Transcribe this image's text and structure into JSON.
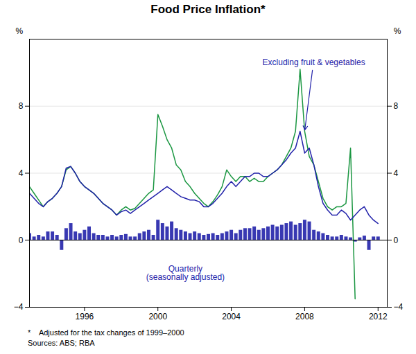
{
  "chart_data": {
    "type": "bar",
    "title": "Food Price Inflation*",
    "ylabel": "%",
    "y2label": "%",
    "x": [
      1993.0,
      1993.25,
      1993.5,
      1993.75,
      1994.0,
      1994.25,
      1994.5,
      1994.75,
      1995.0,
      1995.25,
      1995.5,
      1995.75,
      1996.0,
      1996.25,
      1996.5,
      1996.75,
      1997.0,
      1997.25,
      1997.5,
      1997.75,
      1998.0,
      1998.25,
      1998.5,
      1998.75,
      1999.0,
      1999.25,
      1999.5,
      1999.75,
      2000.0,
      2000.25,
      2000.5,
      2000.75,
      2001.0,
      2001.25,
      2001.5,
      2001.75,
      2002.0,
      2002.25,
      2002.5,
      2002.75,
      2003.0,
      2003.25,
      2003.5,
      2003.75,
      2004.0,
      2004.25,
      2004.5,
      2004.75,
      2005.0,
      2005.25,
      2005.5,
      2005.75,
      2006.0,
      2006.25,
      2006.5,
      2006.75,
      2007.0,
      2007.25,
      2007.5,
      2007.75,
      2008.0,
      2008.25,
      2008.5,
      2008.75,
      2009.0,
      2009.25,
      2009.5,
      2009.75,
      2010.0,
      2010.25,
      2010.5,
      2010.75,
      2011.0,
      2011.25,
      2011.5,
      2011.75,
      2012.0
    ],
    "series": [
      {
        "type": "bar",
        "color": "#2222aa",
        "values": [
          0.4,
          0.2,
          0.3,
          0.2,
          0.5,
          0.5,
          0.3,
          -0.6,
          0.7,
          1.0,
          0.5,
          0.4,
          0.6,
          0.8,
          0.4,
          0.3,
          0.3,
          0.2,
          0.3,
          0.2,
          0.3,
          0.35,
          0.2,
          0.2,
          0.4,
          0.5,
          0.6,
          0.3,
          1.2,
          1.0,
          0.8,
          1.1,
          0.7,
          0.6,
          0.5,
          0.4,
          0.5,
          0.4,
          0.3,
          0.35,
          0.4,
          0.3,
          0.4,
          0.5,
          0.6,
          0.4,
          0.6,
          0.7,
          0.7,
          0.8,
          0.6,
          0.7,
          0.8,
          0.9,
          0.8,
          0.9,
          1.0,
          1.1,
          0.9,
          1.0,
          1.2,
          1.1,
          0.6,
          0.5,
          0.4,
          0.3,
          0.2,
          0.2,
          0.3,
          0.2,
          0.15,
          -0.1,
          0.15,
          0.25,
          -0.6,
          0.2,
          0.2
        ]
      },
      {
        "type": "line",
        "color": "#1a9641",
        "values": [
          3.2,
          2.8,
          2.4,
          2.0,
          2.3,
          2.5,
          2.8,
          3.2,
          4.2,
          4.4,
          4.0,
          3.5,
          3.2,
          3.0,
          2.8,
          2.5,
          2.2,
          2.0,
          1.8,
          1.5,
          1.8,
          2.0,
          1.8,
          1.9,
          2.2,
          2.5,
          2.8,
          3.0,
          7.5,
          6.8,
          6.0,
          5.5,
          4.5,
          4.2,
          3.5,
          3.2,
          2.8,
          2.5,
          2.2,
          2.0,
          2.3,
          2.7,
          3.2,
          4.2,
          3.8,
          3.5,
          3.8,
          3.8,
          3.5,
          3.7,
          3.5,
          3.5,
          3.8,
          4.0,
          4.2,
          4.5,
          5.0,
          5.5,
          6.5,
          10.2,
          6.5,
          5.0,
          4.5,
          3.5,
          2.5,
          2.0,
          1.8,
          2.0,
          2.0,
          2.2,
          5.5,
          -3.5,
          null,
          null,
          null,
          null,
          null
        ]
      },
      {
        "type": "line",
        "color": "#2222aa",
        "values": [
          2.8,
          2.5,
          2.2,
          2.0,
          2.3,
          2.5,
          2.8,
          3.2,
          4.3,
          4.4,
          4.0,
          3.5,
          3.2,
          3.0,
          2.8,
          2.5,
          2.2,
          2.0,
          1.8,
          1.5,
          1.7,
          1.8,
          1.6,
          1.8,
          2.0,
          2.2,
          2.4,
          2.6,
          2.8,
          3.0,
          3.2,
          3.0,
          2.8,
          2.6,
          2.5,
          2.4,
          2.4,
          2.3,
          2.0,
          2.0,
          2.2,
          2.5,
          2.8,
          3.2,
          3.5,
          3.2,
          3.5,
          3.8,
          3.8,
          4.0,
          4.0,
          3.8,
          3.8,
          4.0,
          4.2,
          4.5,
          4.8,
          5.2,
          5.5,
          6.5,
          5.2,
          5.5,
          4.5,
          3.2,
          2.2,
          1.8,
          1.5,
          1.5,
          1.8,
          1.6,
          1.2,
          1.5,
          1.8,
          2.0,
          1.5,
          1.2,
          1.0
        ]
      }
    ],
    "xlim": [
      1993.0,
      2012.5
    ],
    "xticks": [
      1996,
      2000,
      2004,
      2008,
      2012
    ],
    "ylim": [
      -4,
      12
    ],
    "yticks": [
      -4,
      0,
      4,
      8
    ],
    "grid": true,
    "annotations": [
      {
        "text": "Excluding fruit & vegetables",
        "x": 2008.5,
        "y": 10.8,
        "arrow_to": [
          2008.0,
          6.5
        ],
        "color": "#2222aa"
      },
      {
        "text": "Quarterly\n(seasonally adjusted)",
        "x": 2001.5,
        "y": -1.5,
        "color": "#2222aa"
      }
    ],
    "footnotes": [
      "*    Adjusted for the tax changes of 1999–2000",
      "Sources: ABS; RBA"
    ]
  }
}
